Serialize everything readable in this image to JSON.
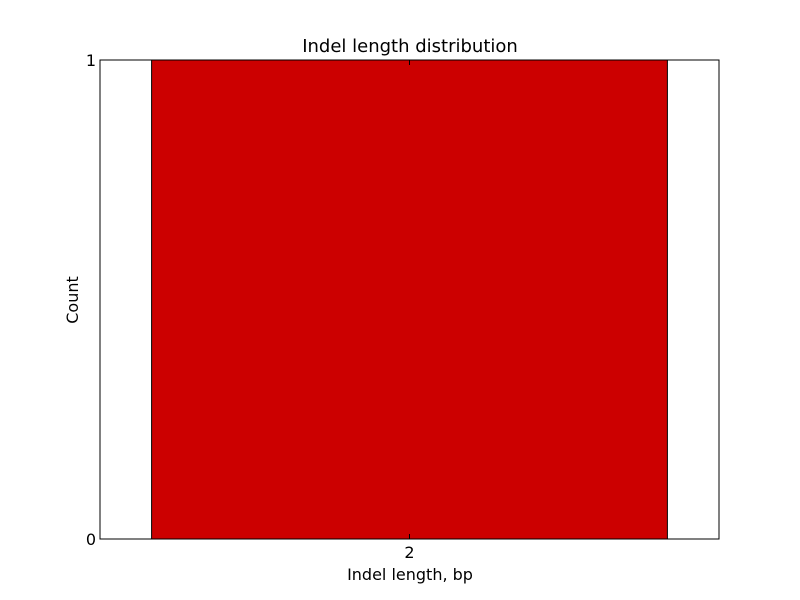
{
  "chart_data": {
    "type": "bar",
    "title": "Indel length distribution",
    "xlabel": "Indel length, bp",
    "ylabel": "Count",
    "categories": [
      "2"
    ],
    "values": [
      1
    ],
    "ylim": [
      0,
      1
    ],
    "yticks": [
      "0",
      "1"
    ],
    "xticks": [
      "2"
    ],
    "grid": false,
    "legend": "none",
    "bar_color": "#cc0000",
    "edge_color": "#000000"
  }
}
